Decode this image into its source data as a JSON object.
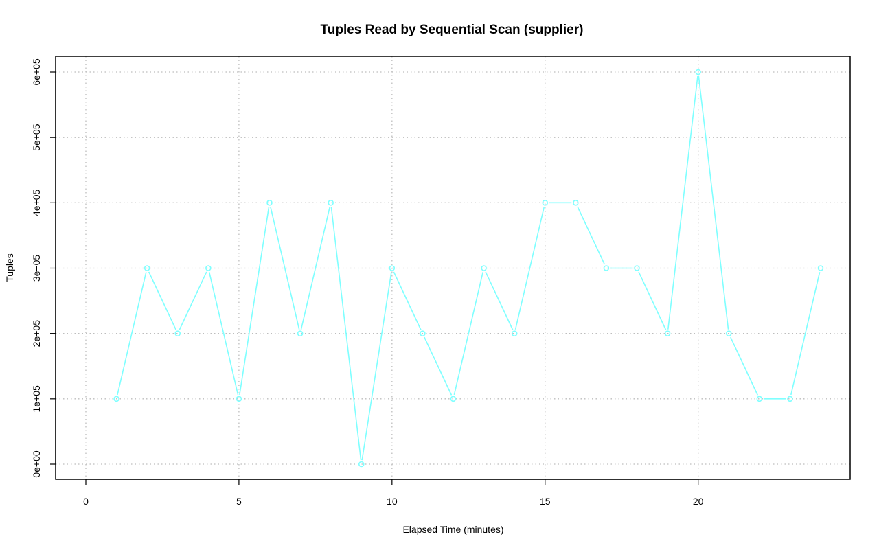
{
  "chart_data": {
    "type": "line",
    "title": "Tuples Read by Sequential Scan (supplier)",
    "xlabel": "Elapsed Time (minutes)",
    "ylabel": "Tuples",
    "xlim": [
      0,
      24
    ],
    "ylim": [
      0,
      600000
    ],
    "x_ticks": [
      0,
      5,
      10,
      15,
      20
    ],
    "x_tick_labels": [
      "0",
      "5",
      "10",
      "15",
      "20"
    ],
    "y_ticks": [
      0,
      100000,
      200000,
      300000,
      400000,
      500000,
      600000
    ],
    "y_tick_labels": [
      "0e+00",
      "1e+05",
      "2e+05",
      "3e+05",
      "4e+05",
      "5e+05",
      "6e+05"
    ],
    "grid": true,
    "series_color": "#7fffff",
    "x": [
      1,
      2,
      3,
      4,
      5,
      6,
      7,
      8,
      9,
      10,
      11,
      12,
      13,
      14,
      15,
      16,
      17,
      18,
      19,
      20,
      21,
      22,
      23,
      24
    ],
    "values": [
      100000,
      300000,
      200000,
      300000,
      100000,
      400000,
      200000,
      400000,
      0,
      300000,
      200000,
      100000,
      300000,
      200000,
      400000,
      400000,
      300000,
      300000,
      200000,
      600000,
      200000,
      100000,
      100000,
      300000
    ]
  }
}
